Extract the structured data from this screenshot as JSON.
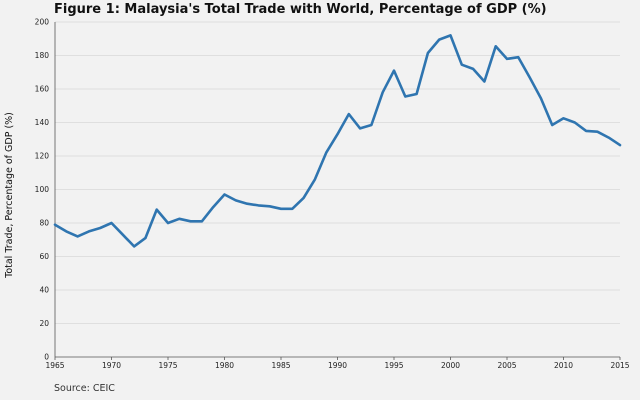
{
  "chart_data": {
    "type": "line",
    "title": "Figure 1: Malaysia's Total Trade with World, Percentage of GDP (%)",
    "xlabel": "",
    "ylabel": "Total Trade, Percentage of GDP (%)",
    "source": "Source: CEIC",
    "xlim": [
      1965,
      2015
    ],
    "ylim": [
      0,
      200
    ],
    "xticks": [
      1965,
      1970,
      1975,
      1980,
      1985,
      1990,
      1995,
      2000,
      2005,
      2010,
      2015
    ],
    "yticks": [
      0,
      20,
      40,
      60,
      80,
      100,
      120,
      140,
      160,
      180,
      200
    ],
    "grid": "horizontal",
    "line_color": "#2f75b0",
    "series": [
      {
        "name": "Total Trade, Percentage of GDP (%)",
        "x": [
          1965,
          1966,
          1967,
          1968,
          1969,
          1970,
          1971,
          1972,
          1973,
          1974,
          1975,
          1976,
          1977,
          1978,
          1979,
          1980,
          1981,
          1982,
          1983,
          1984,
          1985,
          1986,
          1987,
          1988,
          1989,
          1990,
          1991,
          1992,
          1993,
          1994,
          1995,
          1996,
          1997,
          1998,
          1999,
          2000,
          2001,
          2002,
          2003,
          2004,
          2005,
          2006,
          2007,
          2008,
          2009,
          2010,
          2011,
          2012,
          2013,
          2014,
          2015
        ],
        "values": [
          79,
          75,
          72,
          75,
          77,
          80,
          73,
          66,
          71,
          88,
          80,
          82.5,
          81,
          81,
          89.5,
          97,
          93.5,
          91.5,
          90.5,
          90,
          88.5,
          88.5,
          95,
          106,
          122,
          133,
          145,
          136.5,
          138.5,
          158,
          171,
          155.5,
          157,
          181.5,
          189.5,
          192,
          174.5,
          172,
          164.5,
          185.5,
          178,
          179,
          167,
          154.5,
          138.5,
          142.5,
          140,
          135,
          134.5,
          131,
          126.5
        ]
      }
    ]
  }
}
